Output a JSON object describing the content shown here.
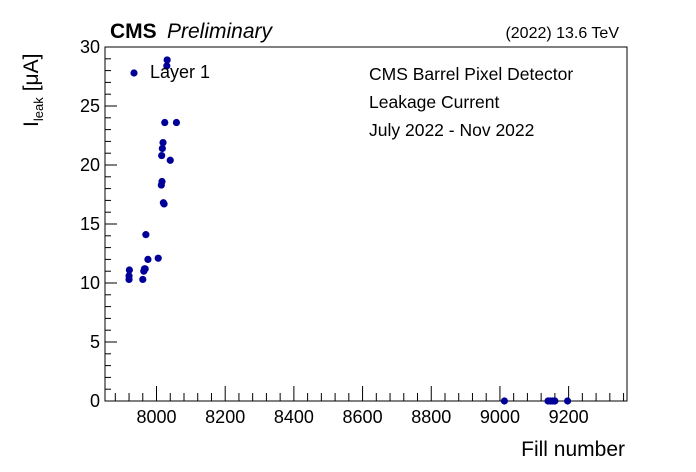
{
  "chart_data": {
    "type": "scatter",
    "header": {
      "experiment": "CMS",
      "status": "Preliminary",
      "energy": "(2022) 13.6 TeV"
    },
    "xlabel": "Fill number",
    "ylabel": {
      "main": "I",
      "subscript": "leak",
      "unit": "[μA]"
    },
    "xlim": [
      7850,
      9370
    ],
    "ylim": [
      0,
      30
    ],
    "x_ticks": [
      "8000",
      "8200",
      "8400",
      "8600",
      "8800",
      "9000",
      "9200"
    ],
    "x_tick_values": [
      8000,
      8200,
      8400,
      8600,
      8800,
      9000,
      9200
    ],
    "y_ticks": [
      "0",
      "5",
      "10",
      "15",
      "20",
      "25",
      "30"
    ],
    "y_tick_values": [
      0,
      5,
      10,
      15,
      20,
      25,
      30
    ],
    "grid": false,
    "legend_position": "top-left",
    "annotations": [
      "CMS Barrel Pixel Detector",
      "Leakage Current",
      "July 2022 - Nov 2022"
    ],
    "series": [
      {
        "name": "Layer 1",
        "color": "#000099",
        "points": [
          {
            "x": 7920,
            "y": 10.3
          },
          {
            "x": 7920,
            "y": 10.6
          },
          {
            "x": 7921,
            "y": 11.1
          },
          {
            "x": 7960,
            "y": 10.3
          },
          {
            "x": 7963,
            "y": 11.0
          },
          {
            "x": 7965,
            "y": 11.2
          },
          {
            "x": 7967,
            "y": 11.2
          },
          {
            "x": 7969,
            "y": 14.1
          },
          {
            "x": 7975,
            "y": 12.0
          },
          {
            "x": 8005,
            "y": 12.1
          },
          {
            "x": 8014,
            "y": 18.3
          },
          {
            "x": 8016,
            "y": 18.6
          },
          {
            "x": 8015,
            "y": 20.8
          },
          {
            "x": 8017,
            "y": 21.4
          },
          {
            "x": 8019,
            "y": 21.9
          },
          {
            "x": 8020,
            "y": 16.8
          },
          {
            "x": 8022,
            "y": 16.7
          },
          {
            "x": 8024,
            "y": 23.6
          },
          {
            "x": 8030,
            "y": 28.4
          },
          {
            "x": 8031,
            "y": 28.9
          },
          {
            "x": 8040,
            "y": 20.4
          },
          {
            "x": 8058,
            "y": 23.6
          },
          {
            "x": 9013,
            "y": 0.0
          },
          {
            "x": 9140,
            "y": 0.0
          },
          {
            "x": 9147,
            "y": 0.0
          },
          {
            "x": 9153,
            "y": 0.0
          },
          {
            "x": 9158,
            "y": 0.0
          },
          {
            "x": 9160,
            "y": 0.0
          },
          {
            "x": 9197,
            "y": 0.0
          }
        ]
      }
    ]
  }
}
